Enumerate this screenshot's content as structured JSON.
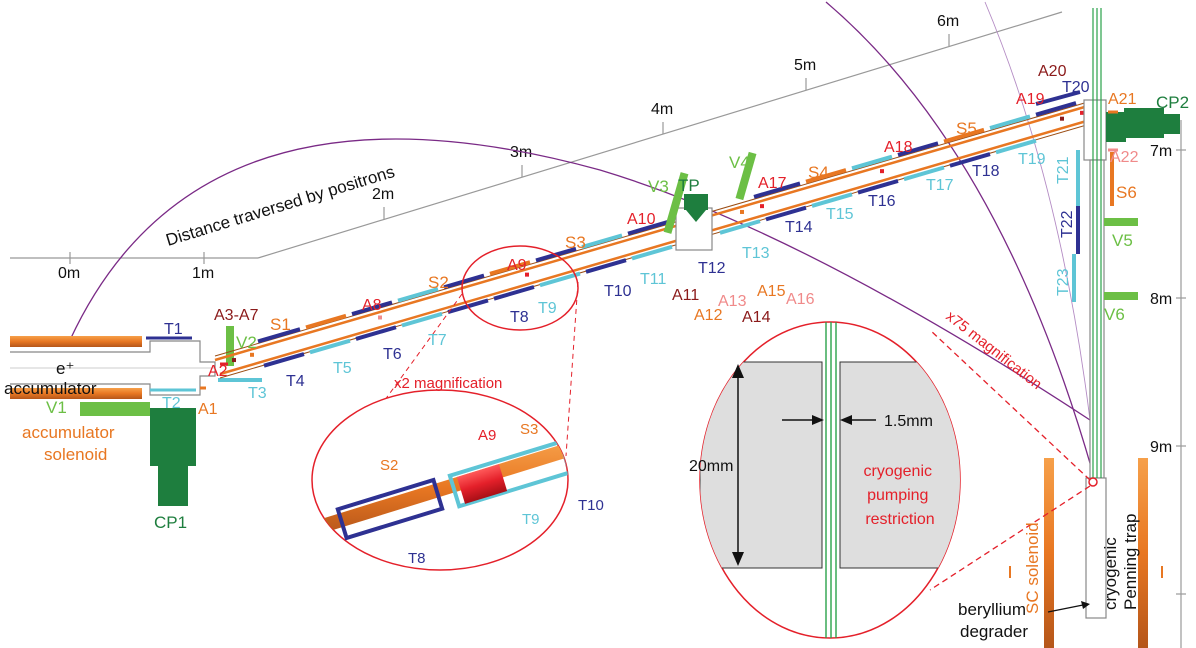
{
  "colors": {
    "dark_blue": "#2e3192",
    "light_blue": "#5ec5d6",
    "orange": "#e87722",
    "red": "#e4202a",
    "dark_red": "#8b1a1a",
    "pink": "#f08a8a",
    "light_green": "#6cbf45",
    "dark_green": "#1e7e3e",
    "purple": "#7a2a86",
    "gray_line": "#888888",
    "text_black": "#111111"
  },
  "distance_axis": {
    "title": "Distance  traversed by positrons",
    "ticks": [
      "0m",
      "1m",
      "2m",
      "3m",
      "4m",
      "5m",
      "6m"
    ]
  },
  "vertical_scale": {
    "ticks": [
      "7m",
      "8m",
      "9m"
    ]
  },
  "labels": {
    "accumulator": "e⁺\naccumulator",
    "accumulator_solenoid": "accumulator\nsolenoid",
    "valves": [
      "V1",
      "V2",
      "V3",
      "V4",
      "V5",
      "V6"
    ],
    "cryopumps": [
      "CP1",
      "CP2"
    ],
    "turbo_pump": "TP",
    "transfer_coils": [
      "T1",
      "T2",
      "T3",
      "T4",
      "T5",
      "T6",
      "T7",
      "T8",
      "T9",
      "T10",
      "T11",
      "T12",
      "T13",
      "T14",
      "T15",
      "T16",
      "T17",
      "T18",
      "T19",
      "T20",
      "T21",
      "T22",
      "T23"
    ],
    "solenoids": [
      "S1",
      "S2",
      "S3",
      "S4",
      "S5",
      "S6"
    ],
    "apertures": [
      "A1",
      "A2",
      "A3-A7",
      "A8",
      "A9",
      "A10",
      "A11",
      "A12",
      "A13",
      "A14",
      "A15",
      "A16",
      "A17",
      "A18",
      "A19",
      "A20",
      "A21",
      "A22"
    ]
  },
  "zoom_x2": {
    "title": "x2 magnification",
    "labels": [
      "S2",
      "A9",
      "S3",
      "T8",
      "T9",
      "T10"
    ]
  },
  "zoom_x75": {
    "title": "x75 magnification",
    "dim_width": "1.5mm",
    "dim_height": "20mm",
    "caption": "cryogenic\npumping\nrestriction"
  },
  "trap": {
    "sc_solenoid": "SC solenoid",
    "penning_trap": "cryogenic\nPenning trap",
    "degrader": "beryllium\ndegrader"
  }
}
